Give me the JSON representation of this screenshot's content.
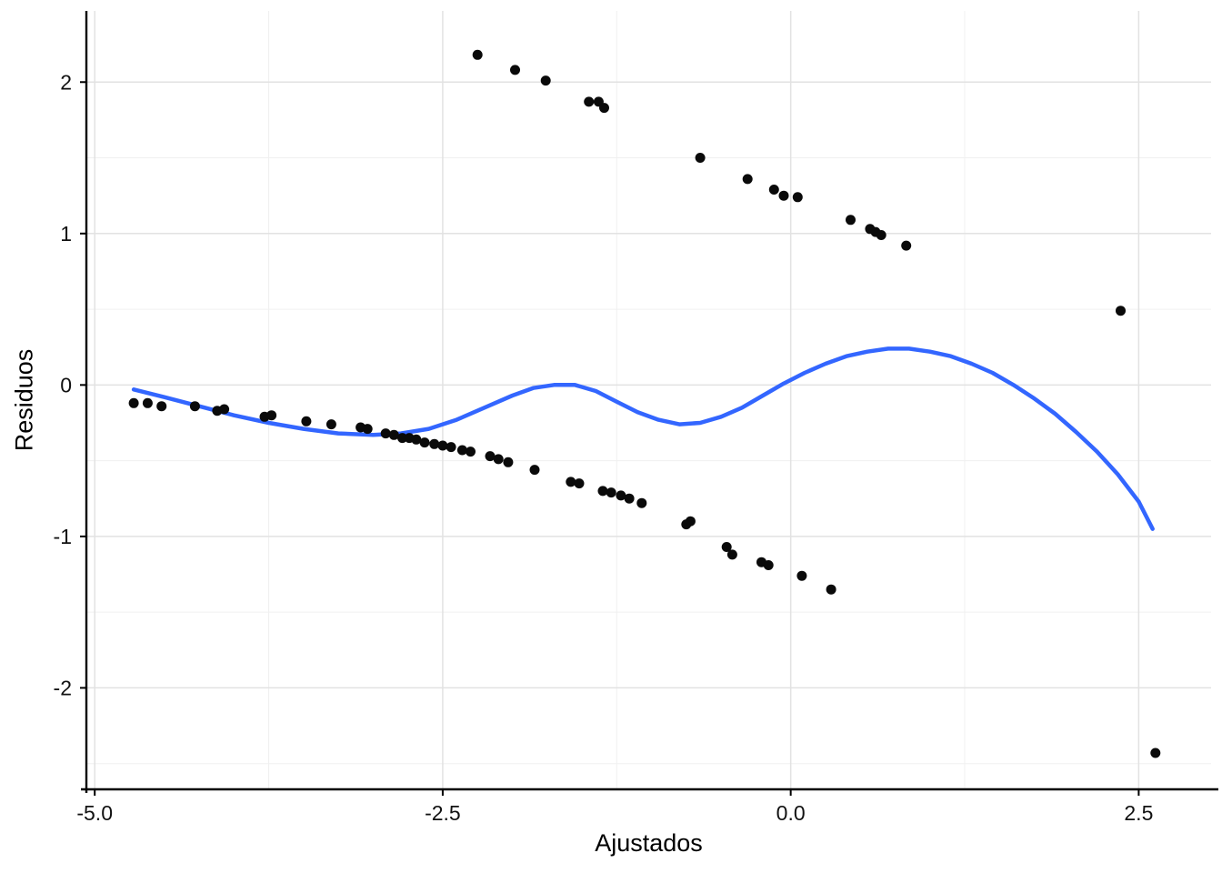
{
  "chart_data": {
    "type": "scatter",
    "title": "",
    "xlabel": "Ajustados",
    "ylabel": "Residuos",
    "xlim": [
      -5.06,
      3.02
    ],
    "ylim": [
      -2.67,
      2.47
    ],
    "x_major_ticks": [
      -5.0,
      -2.5,
      0.0,
      2.5
    ],
    "x_tick_labels": [
      "-5.0",
      "-2.5",
      "0.0",
      "2.5"
    ],
    "x_minor_ticks": [
      -3.75,
      -1.25,
      1.25
    ],
    "y_major_ticks": [
      -2,
      -1,
      0,
      1,
      2
    ],
    "y_tick_labels": [
      "-2",
      "-1",
      "0",
      "1",
      "2"
    ],
    "y_minor_ticks": [
      -2.5,
      -1.5,
      -0.5,
      0.5,
      1.5,
      2.5
    ],
    "grid": true,
    "legend": "none",
    "point_color": "#0a0a0a",
    "smooth_color": "#3366FF",
    "axis_color": "#000000",
    "grid_major_color": "#e2e2e2",
    "grid_minor_color": "#f0f0f0",
    "points": [
      [
        -2.25,
        2.18
      ],
      [
        -1.98,
        2.08
      ],
      [
        -1.76,
        2.01
      ],
      [
        -1.45,
        1.87
      ],
      [
        -1.38,
        1.87
      ],
      [
        -1.34,
        1.83
      ],
      [
        -0.65,
        1.5
      ],
      [
        -0.31,
        1.36
      ],
      [
        -0.12,
        1.29
      ],
      [
        -0.05,
        1.25
      ],
      [
        0.05,
        1.24
      ],
      [
        0.43,
        1.09
      ],
      [
        0.57,
        1.03
      ],
      [
        0.61,
        1.01
      ],
      [
        0.65,
        0.99
      ],
      [
        0.83,
        0.92
      ],
      [
        2.37,
        0.49
      ],
      [
        2.62,
        -2.43
      ],
      [
        -4.72,
        -0.12
      ],
      [
        -4.62,
        -0.12
      ],
      [
        -4.52,
        -0.14
      ],
      [
        -4.28,
        -0.14
      ],
      [
        -4.12,
        -0.17
      ],
      [
        -4.07,
        -0.16
      ],
      [
        -3.78,
        -0.21
      ],
      [
        -3.73,
        -0.2
      ],
      [
        -3.48,
        -0.24
      ],
      [
        -3.3,
        -0.26
      ],
      [
        -3.09,
        -0.28
      ],
      [
        -3.04,
        -0.29
      ],
      [
        -2.91,
        -0.32
      ],
      [
        -2.85,
        -0.33
      ],
      [
        -2.79,
        -0.35
      ],
      [
        -2.74,
        -0.35
      ],
      [
        -2.69,
        -0.36
      ],
      [
        -2.63,
        -0.38
      ],
      [
        -2.56,
        -0.39
      ],
      [
        -2.5,
        -0.4
      ],
      [
        -2.44,
        -0.41
      ],
      [
        -2.36,
        -0.43
      ],
      [
        -2.3,
        -0.44
      ],
      [
        -2.16,
        -0.47
      ],
      [
        -2.1,
        -0.49
      ],
      [
        -2.03,
        -0.51
      ],
      [
        -1.84,
        -0.56
      ],
      [
        -1.58,
        -0.64
      ],
      [
        -1.52,
        -0.65
      ],
      [
        -1.35,
        -0.7
      ],
      [
        -1.29,
        -0.71
      ],
      [
        -1.22,
        -0.73
      ],
      [
        -1.16,
        -0.75
      ],
      [
        -1.07,
        -0.78
      ],
      [
        -0.75,
        -0.92
      ],
      [
        -0.72,
        -0.9
      ],
      [
        -0.46,
        -1.07
      ],
      [
        -0.42,
        -1.12
      ],
      [
        -0.21,
        -1.17
      ],
      [
        -0.16,
        -1.19
      ],
      [
        0.08,
        -1.26
      ],
      [
        0.29,
        -1.35
      ]
    ],
    "smooth_line": [
      [
        -4.72,
        -0.03
      ],
      [
        -4.5,
        -0.08
      ],
      [
        -4.25,
        -0.14
      ],
      [
        -4.0,
        -0.2
      ],
      [
        -3.75,
        -0.25
      ],
      [
        -3.5,
        -0.29
      ],
      [
        -3.25,
        -0.32
      ],
      [
        -3.0,
        -0.33
      ],
      [
        -2.8,
        -0.32
      ],
      [
        -2.6,
        -0.29
      ],
      [
        -2.4,
        -0.23
      ],
      [
        -2.2,
        -0.15
      ],
      [
        -2.0,
        -0.07
      ],
      [
        -1.85,
        -0.02
      ],
      [
        -1.7,
        0.0
      ],
      [
        -1.55,
        0.0
      ],
      [
        -1.4,
        -0.04
      ],
      [
        -1.25,
        -0.11
      ],
      [
        -1.1,
        -0.18
      ],
      [
        -0.95,
        -0.23
      ],
      [
        -0.8,
        -0.26
      ],
      [
        -0.65,
        -0.25
      ],
      [
        -0.5,
        -0.21
      ],
      [
        -0.35,
        -0.15
      ],
      [
        -0.2,
        -0.07
      ],
      [
        -0.05,
        0.01
      ],
      [
        0.1,
        0.08
      ],
      [
        0.25,
        0.14
      ],
      [
        0.4,
        0.19
      ],
      [
        0.55,
        0.22
      ],
      [
        0.7,
        0.24
      ],
      [
        0.85,
        0.24
      ],
      [
        1.0,
        0.22
      ],
      [
        1.15,
        0.19
      ],
      [
        1.3,
        0.14
      ],
      [
        1.45,
        0.08
      ],
      [
        1.6,
        0.0
      ],
      [
        1.75,
        -0.09
      ],
      [
        1.9,
        -0.19
      ],
      [
        2.05,
        -0.31
      ],
      [
        2.2,
        -0.44
      ],
      [
        2.35,
        -0.59
      ],
      [
        2.5,
        -0.77
      ],
      [
        2.6,
        -0.95
      ]
    ]
  }
}
